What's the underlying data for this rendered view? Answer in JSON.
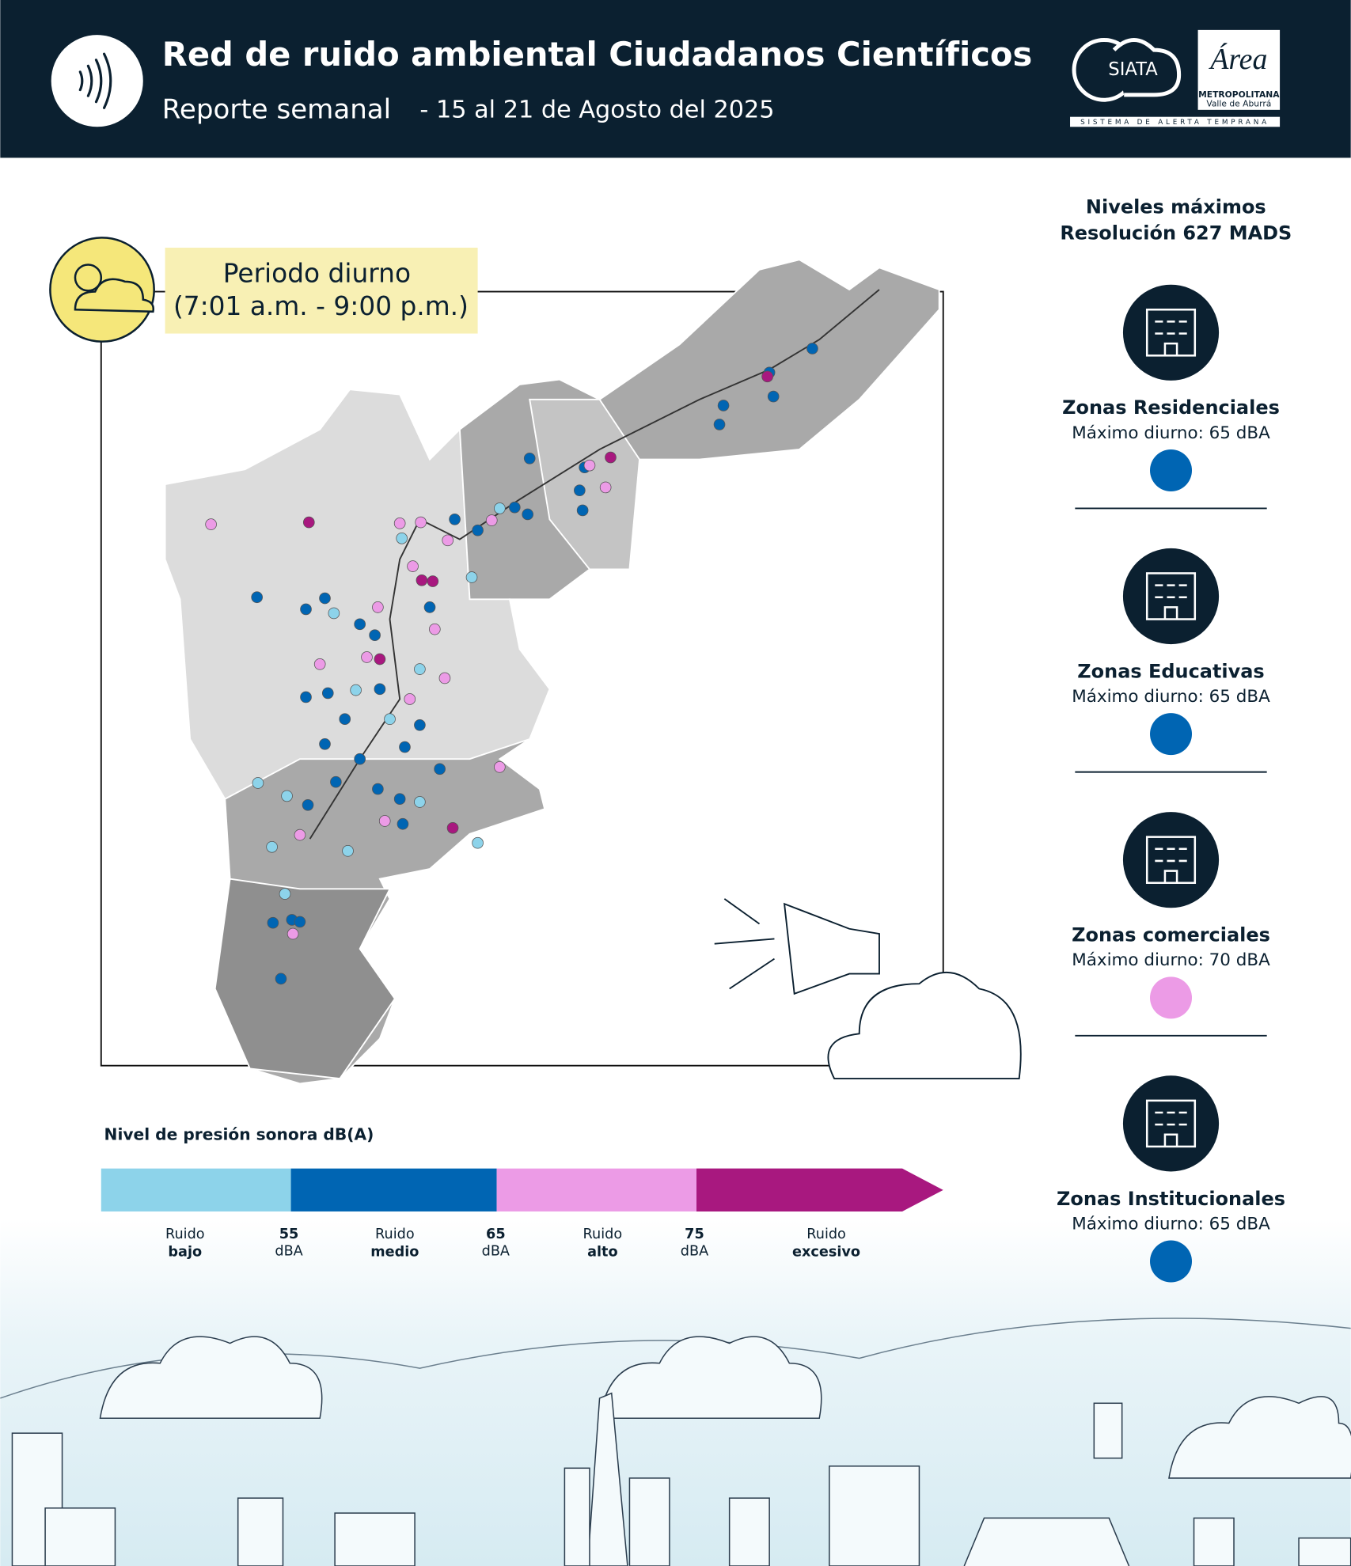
{
  "header": {
    "title": "Red de ruido ambiental Ciudadanos Científicos",
    "subtitle": "Reporte semanal",
    "dates": "- 15 al 21 de Agosto del 2025",
    "logos": {
      "siata": "SIATA",
      "area": "Área",
      "area_line1": "METROPOLITANA",
      "area_line2": "Valle de Aburrá",
      "tagline": "SISTEMA DE ALERTA TEMPRANA"
    }
  },
  "map": {
    "period": "Periodo diurno",
    "hours": "(7:01 a.m. - 9:00 p.m.)"
  },
  "legend": {
    "title": "Nivel de presión sonora dB(A)",
    "segments": [
      {
        "line1": "Ruido",
        "line2": "bajo",
        "color": "#8dd3ea"
      },
      {
        "line1": "Ruido",
        "line2": "medio",
        "color": "#0065b3"
      },
      {
        "line1": "Ruido",
        "line2": "alto",
        "color": "#ec9be6"
      },
      {
        "line1": "Ruido",
        "line2": "excesivo",
        "color": "#a8187f"
      }
    ],
    "thresholds": [
      {
        "level": "55",
        "unit": "dBA"
      },
      {
        "level": "65",
        "unit": "dBA"
      },
      {
        "level": "75",
        "unit": "dBA"
      }
    ]
  },
  "limits": {
    "title_line1": "Niveles máximos",
    "title_line2": "Resolución 627 MADS",
    "zones": [
      {
        "name": "Zonas Residenciales",
        "max": "Máximo diurno: 65 dBA",
        "color": "#0065b3"
      },
      {
        "name": "Zonas Educativas",
        "max": "Máximo diurno: 65 dBA",
        "color": "#0065b3"
      },
      {
        "name": "Zonas comerciales",
        "max": "Máximo diurno: 70 dBA",
        "color": "#ec9be6"
      },
      {
        "name": "Zonas Institucionales",
        "max": "Máximo diurno: 65 dBA",
        "color": "#0065b3"
      }
    ]
  }
}
